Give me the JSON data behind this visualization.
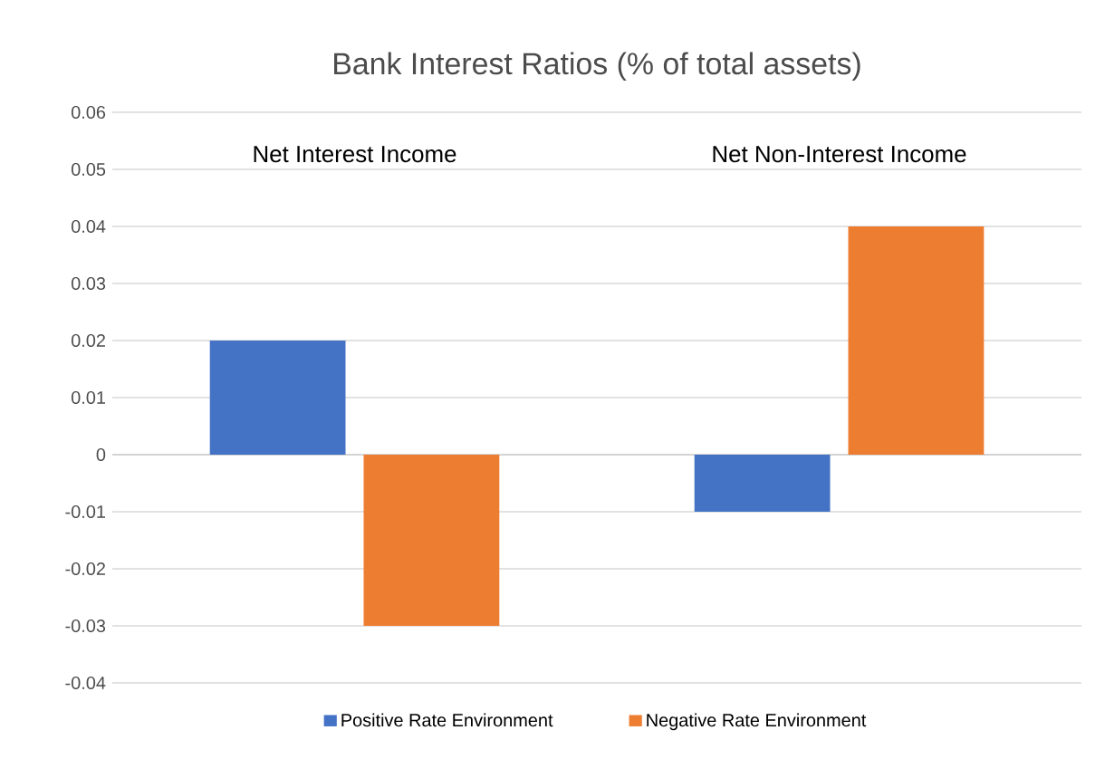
{
  "chart_data": {
    "type": "bar",
    "title": "Bank Interest Ratios (% of total assets)",
    "categories": [
      "Net Interest Income",
      "Net Non-Interest Income"
    ],
    "series": [
      {
        "name": "Positive Rate Environment",
        "color": "#4472c4",
        "values": [
          0.02,
          -0.01
        ]
      },
      {
        "name": "Negative Rate Environment",
        "color": "#ed7d31",
        "values": [
          -0.03,
          0.04
        ]
      }
    ],
    "ylim": [
      -0.04,
      0.06
    ],
    "yticks": [
      -0.04,
      -0.03,
      -0.02,
      -0.01,
      0,
      0.01,
      0.02,
      0.03,
      0.04,
      0.05,
      0.06
    ],
    "grid": "y",
    "legend": "bottom"
  }
}
